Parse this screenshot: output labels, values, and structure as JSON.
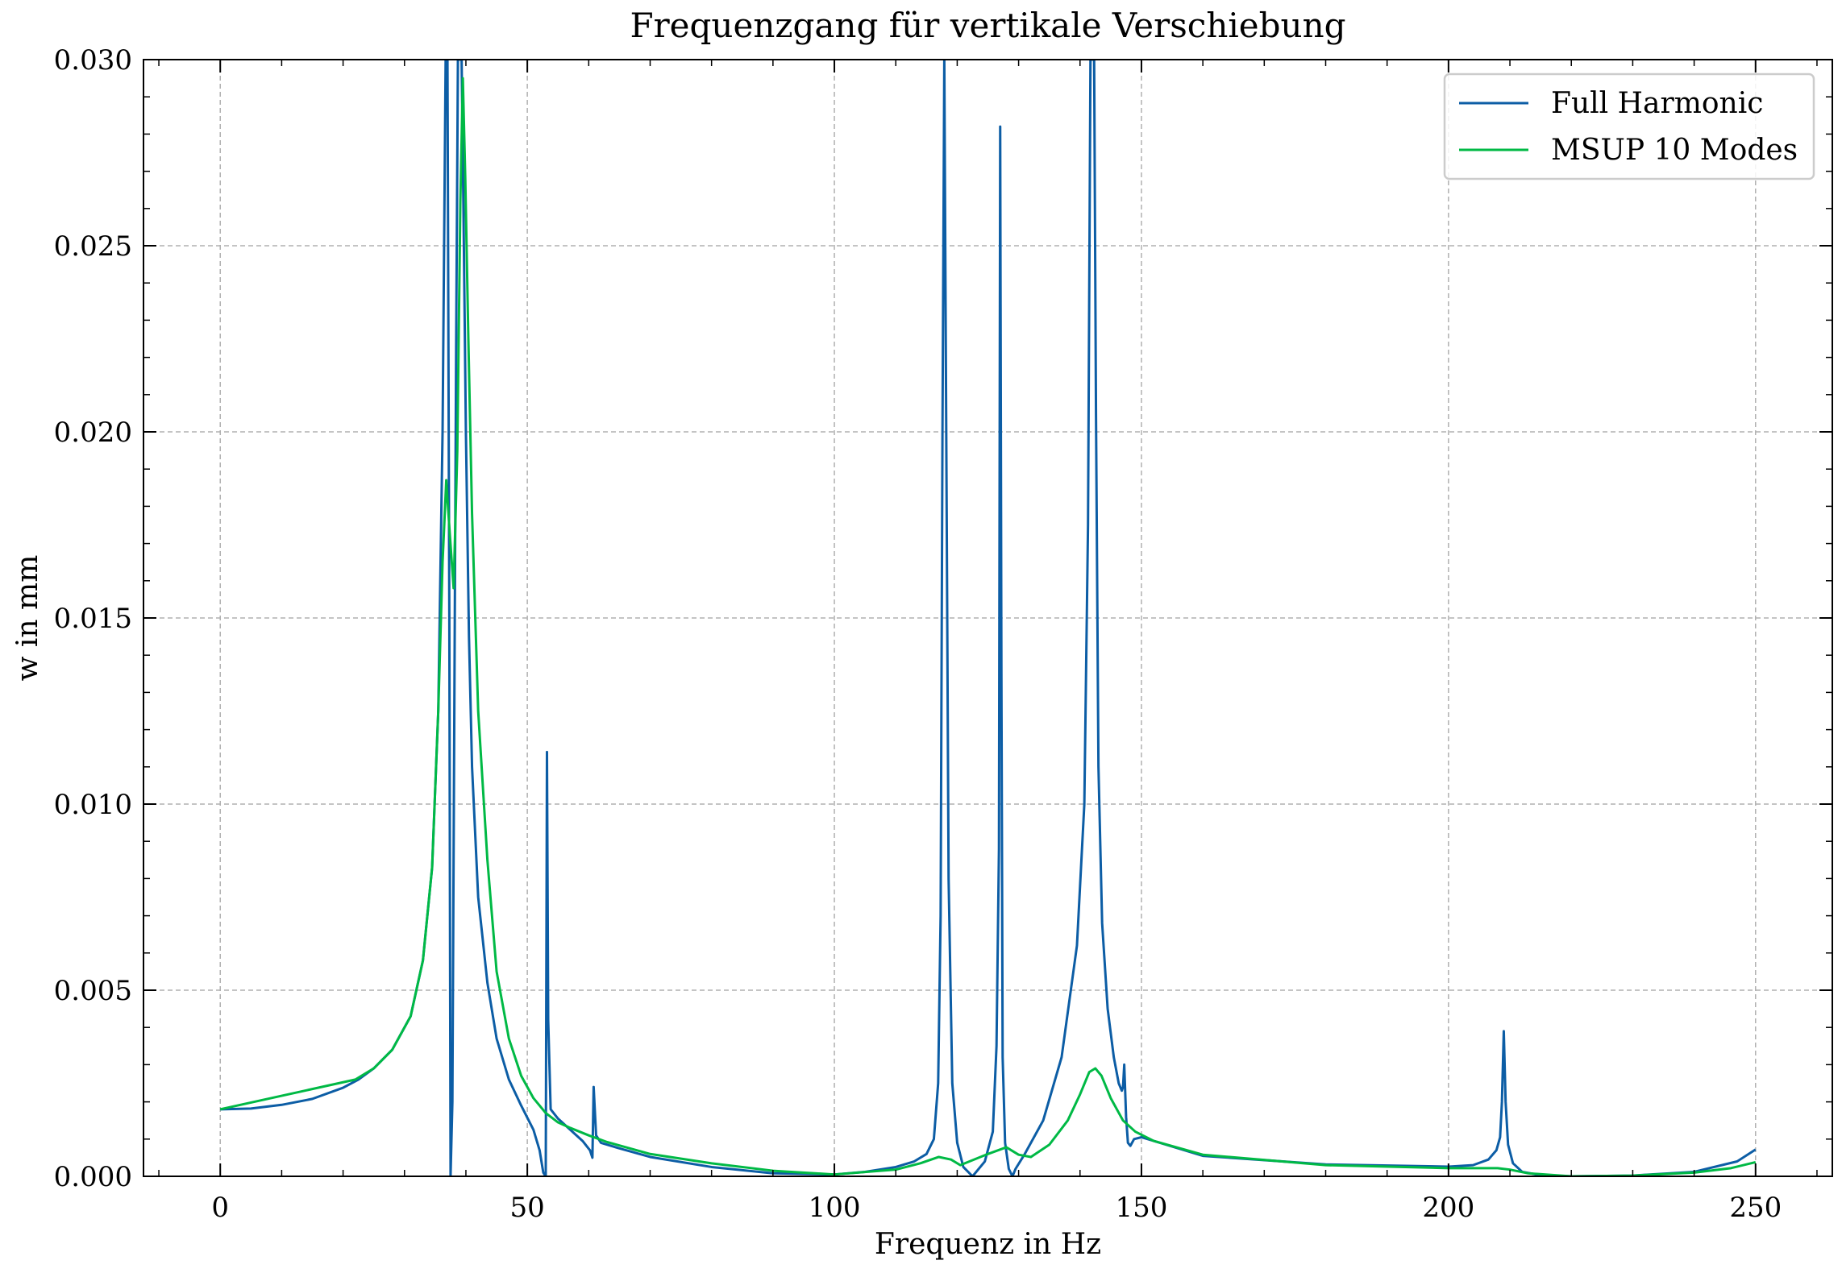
{
  "chart_data": {
    "type": "line",
    "title": "Frequenzgang für vertikale Verschiebung",
    "xlabel": "Frequenz in Hz",
    "ylabel": "w in mm",
    "xlim": [
      -12.5,
      262.5
    ],
    "ylim": [
      0.0,
      0.03
    ],
    "xticks": [
      0,
      50,
      100,
      150,
      200,
      250
    ],
    "xtick_labels": [
      "0",
      "50",
      "100",
      "150",
      "200",
      "250"
    ],
    "yticks": [
      0.0,
      0.005,
      0.01,
      0.015,
      0.02,
      0.025,
      0.03
    ],
    "ytick_labels": [
      "0.000",
      "0.005",
      "0.010",
      "0.015",
      "0.020",
      "0.025",
      "0.030"
    ],
    "grid": true,
    "legend_position": "top-right",
    "series": [
      {
        "name": "Full Harmonic",
        "color": "#0C5DA5",
        "x": [
          0,
          5,
          10,
          15,
          20,
          22.5,
          25,
          28,
          31,
          33,
          34.5,
          35.5,
          36.2,
          36.7,
          37.0,
          37.3,
          37.5,
          37.8,
          38.1,
          38.4,
          38.7,
          39.0,
          39.3,
          39.6,
          40.0,
          40.5,
          41,
          42,
          43.5,
          45,
          47,
          49,
          51,
          52.0,
          52.6,
          53.0,
          53.2,
          53.4,
          53.8,
          55,
          57,
          59,
          60.2,
          60.6,
          60.8,
          61.2,
          62,
          65,
          70,
          80,
          90,
          100,
          105,
          110,
          113,
          115,
          116.2,
          116.9,
          117.3,
          117.6,
          117.9,
          118.2,
          118.6,
          119.2,
          120.0,
          121.0,
          122.5,
          124.5,
          125.8,
          126.4,
          126.8,
          127.0,
          127.2,
          127.4,
          127.8,
          128.4,
          129.0,
          129.5,
          131,
          134,
          137,
          139.5,
          140.7,
          141.3,
          141.7,
          142.0,
          142.3,
          142.6,
          143.0,
          143.6,
          144.5,
          145.5,
          146.3,
          146.8,
          147.0,
          147.2,
          147.5,
          147.8,
          148.2,
          148.8,
          150,
          160,
          180,
          200,
          204,
          206.5,
          207.8,
          208.4,
          208.7,
          209.0,
          209.3,
          209.7,
          210.5,
          212,
          215,
          220,
          230,
          240,
          247,
          250
        ],
        "values": [
          0.0018,
          0.00182,
          0.00192,
          0.00208,
          0.00238,
          0.0026,
          0.0029,
          0.0034,
          0.0043,
          0.0058,
          0.0083,
          0.0125,
          0.02,
          0.03,
          0.03,
          0.015,
          0.0,
          0.002,
          0.012,
          0.022,
          0.03,
          0.03,
          0.03,
          0.026,
          0.02,
          0.0145,
          0.011,
          0.0075,
          0.0052,
          0.0037,
          0.0026,
          0.0019,
          0.00125,
          0.0007,
          0.0001,
          0.0,
          0.0114,
          0.0042,
          0.0018,
          0.00155,
          0.00125,
          0.00095,
          0.0007,
          0.0005,
          0.0024,
          0.0011,
          0.0009,
          0.00075,
          0.00052,
          0.00025,
          8e-05,
          5e-05,
          0.00012,
          0.00025,
          0.0004,
          0.0006,
          0.001,
          0.0025,
          0.007,
          0.02,
          0.03,
          0.0205,
          0.008,
          0.0025,
          0.0009,
          0.00025,
          0.0,
          0.0004,
          0.0012,
          0.0035,
          0.0088,
          0.0282,
          0.0135,
          0.0032,
          0.0009,
          0.0002,
          0.0,
          0.0002,
          0.0006,
          0.0015,
          0.0032,
          0.0062,
          0.01,
          0.0175,
          0.03,
          0.03,
          0.03,
          0.0205,
          0.011,
          0.0068,
          0.0045,
          0.0032,
          0.0025,
          0.0023,
          0.0024,
          0.003,
          0.0016,
          0.0009,
          0.00082,
          0.001,
          0.00105,
          0.00055,
          0.00032,
          0.00026,
          0.0003,
          0.00045,
          0.0007,
          0.00105,
          0.002,
          0.0039,
          0.002,
          0.00085,
          0.00035,
          0.00012,
          3e-05,
          0.0,
          2e-05,
          0.00012,
          0.0004,
          0.00072
        ]
      },
      {
        "name": "MSUP 10 Modes",
        "color": "#00B945",
        "x": [
          0,
          22,
          25,
          28,
          31,
          33,
          34.5,
          35.5,
          36.2,
          36.8,
          37.4,
          38.0,
          38.6,
          39.1,
          39.5,
          39.9,
          40.4,
          41.0,
          42,
          43.5,
          45,
          47,
          49,
          51,
          53,
          55,
          57,
          60,
          63,
          70,
          80,
          90,
          100,
          110,
          114,
          117,
          119,
          120.5,
          122,
          125,
          128,
          130,
          132,
          135,
          138,
          140,
          141.5,
          142.5,
          143.5,
          145,
          147,
          149,
          152,
          160,
          180,
          200,
          205,
          208,
          210,
          213,
          220,
          230,
          240,
          246,
          250
        ],
        "values": [
          0.0018,
          0.0026,
          0.0029,
          0.0034,
          0.0043,
          0.0058,
          0.0083,
          0.0125,
          0.0165,
          0.0187,
          0.0172,
          0.0158,
          0.0195,
          0.0262,
          0.0295,
          0.0268,
          0.0225,
          0.0178,
          0.0125,
          0.0085,
          0.0055,
          0.0037,
          0.0027,
          0.0021,
          0.0017,
          0.00145,
          0.0013,
          0.0011,
          0.00092,
          0.0006,
          0.00035,
          0.00015,
          5e-05,
          0.00018,
          0.00035,
          0.00052,
          0.00045,
          0.0003,
          0.0004,
          0.0006,
          0.00078,
          0.00058,
          0.00052,
          0.00085,
          0.0015,
          0.0022,
          0.0028,
          0.0029,
          0.0027,
          0.0021,
          0.0015,
          0.0012,
          0.00095,
          0.00058,
          0.0003,
          0.00022,
          0.00022,
          0.00022,
          0.00018,
          8e-05,
          0.0,
          2e-05,
          0.0001,
          0.00022,
          0.00038
        ]
      }
    ]
  }
}
